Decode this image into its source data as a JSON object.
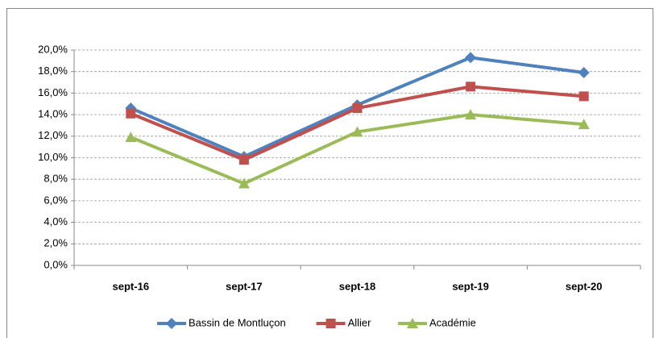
{
  "chart_data": {
    "type": "line",
    "categories": [
      "sept-16",
      "sept-17",
      "sept-18",
      "sept-19",
      "sept-20"
    ],
    "series": [
      {
        "name": "Bassin de Montluçon",
        "color": "#4f81bd",
        "marker": "diamond",
        "values": [
          14.6,
          10.1,
          14.9,
          19.3,
          17.9
        ]
      },
      {
        "name": "Allier",
        "color": "#c0504d",
        "marker": "square",
        "values": [
          14.1,
          9.8,
          14.6,
          16.6,
          15.7
        ]
      },
      {
        "name": "Académie",
        "color": "#9bbb59",
        "marker": "triangle",
        "values": [
          11.9,
          7.6,
          12.4,
          14.0,
          13.1
        ]
      }
    ],
    "ylim": [
      0,
      20
    ],
    "yticks": [
      {
        "value": 0,
        "label": "0,0%"
      },
      {
        "value": 2,
        "label": "2,0%"
      },
      {
        "value": 4,
        "label": "4,0%"
      },
      {
        "value": 6,
        "label": "6,0%"
      },
      {
        "value": 8,
        "label": "8,0%"
      },
      {
        "value": 10,
        "label": "10,0%"
      },
      {
        "value": 12,
        "label": "12,0%"
      },
      {
        "value": 14,
        "label": "14,0%"
      },
      {
        "value": 16,
        "label": "16,0%"
      },
      {
        "value": 18,
        "label": "18,0%"
      },
      {
        "value": 20,
        "label": "20,0%"
      }
    ],
    "grid": true,
    "legend": "bottom"
  }
}
